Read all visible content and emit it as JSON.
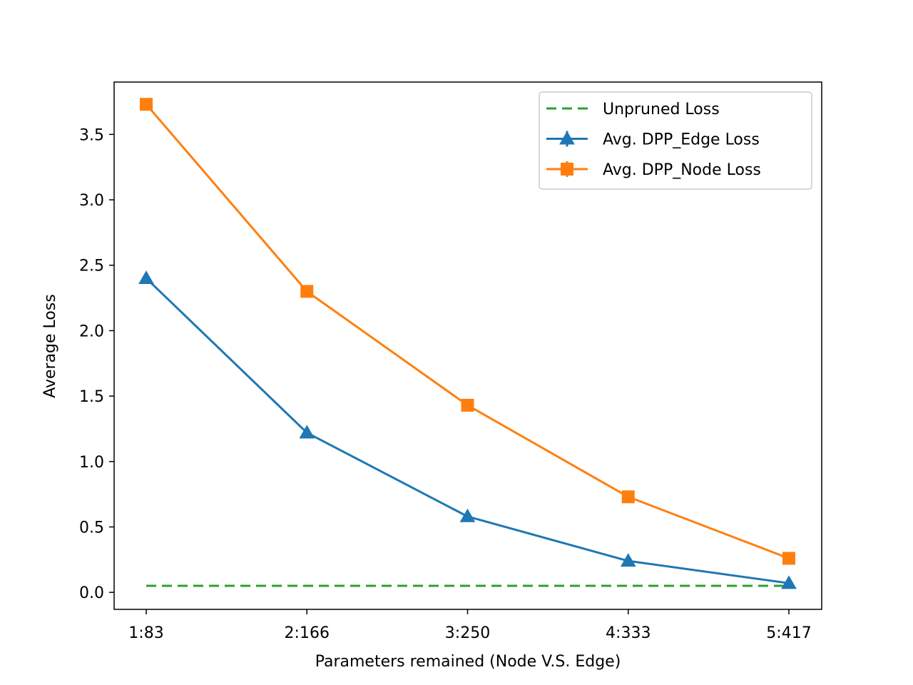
{
  "chart_data": {
    "type": "line",
    "categories": [
      "1:83",
      "2:166",
      "3:250",
      "4:333",
      "5:417"
    ],
    "xlabel": "Parameters remained (Node V.S. Edge)",
    "ylabel": "Average Loss",
    "ylim": [
      -0.13,
      3.9
    ],
    "yticks": [
      0.0,
      0.5,
      1.0,
      1.5,
      2.0,
      2.5,
      3.0,
      3.5
    ],
    "ytick_labels": [
      "0.0",
      "0.5",
      "1.0",
      "1.5",
      "2.0",
      "2.5",
      "3.0",
      "3.5"
    ],
    "grid": false,
    "legend_position": "top-right",
    "series": [
      {
        "name": "Unpruned Loss",
        "values": [
          0.05,
          0.05,
          0.05,
          0.05,
          0.05
        ],
        "color": "#2ca02c",
        "style": "dashed",
        "marker": "none"
      },
      {
        "name": "Avg. DPP_Edge Loss",
        "values": [
          2.4,
          1.22,
          0.58,
          0.24,
          0.07
        ],
        "color": "#1f77b4",
        "style": "solid",
        "marker": "triangle"
      },
      {
        "name": "Avg. DPP_Node Loss",
        "values": [
          3.73,
          2.3,
          1.43,
          0.73,
          0.26
        ],
        "color": "#ff7f0e",
        "style": "solid",
        "marker": "square"
      }
    ]
  }
}
